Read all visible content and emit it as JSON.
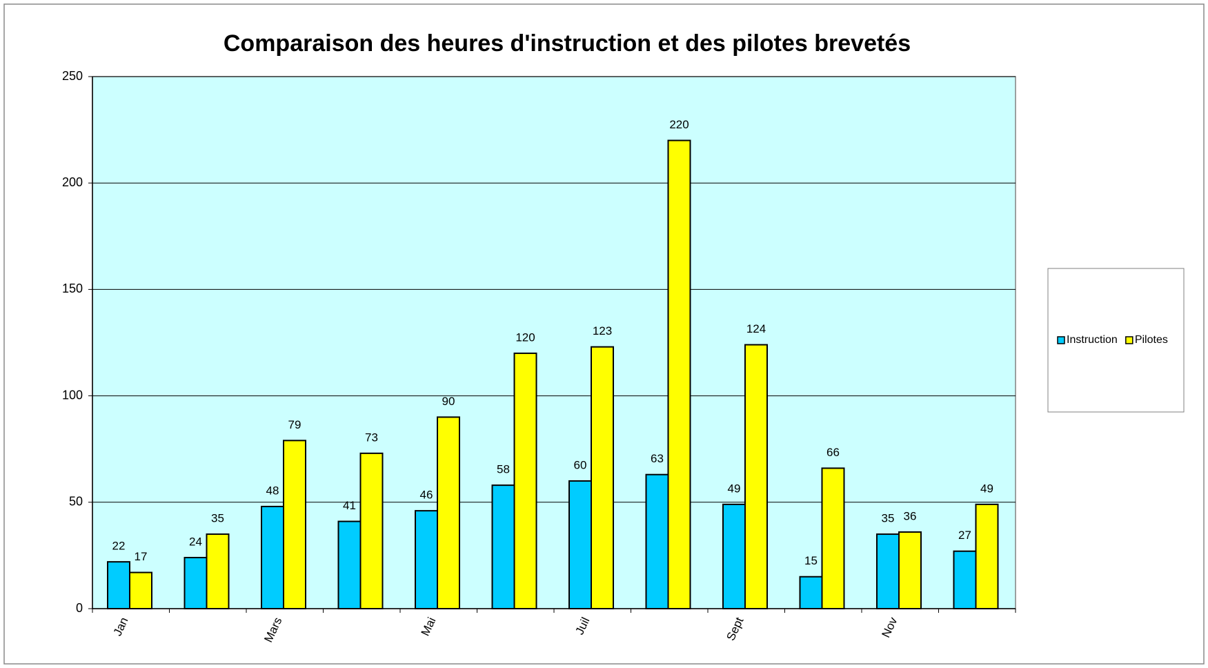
{
  "chart_data": {
    "type": "bar",
    "title": "Comparaison des heures d'instruction et des pilotes brevetés",
    "categories": [
      "Jan",
      null,
      "Mars",
      null,
      "Mai",
      null,
      "Juil",
      null,
      "Sept",
      null,
      "Nov",
      null
    ],
    "series": [
      {
        "name": "Instruction",
        "color": "#00ccff",
        "values": [
          22,
          24,
          48,
          41,
          46,
          58,
          60,
          63,
          49,
          15,
          35,
          27
        ]
      },
      {
        "name": "Pilotes",
        "color": "#ffff00",
        "values": [
          17,
          35,
          79,
          73,
          90,
          120,
          123,
          220,
          124,
          66,
          36,
          49
        ]
      }
    ],
    "ylim": [
      0,
      250
    ],
    "yticks": [
      0,
      50,
      100,
      150,
      200,
      250
    ],
    "grid": true,
    "plot_background": "#ccffff",
    "legend": "right"
  }
}
